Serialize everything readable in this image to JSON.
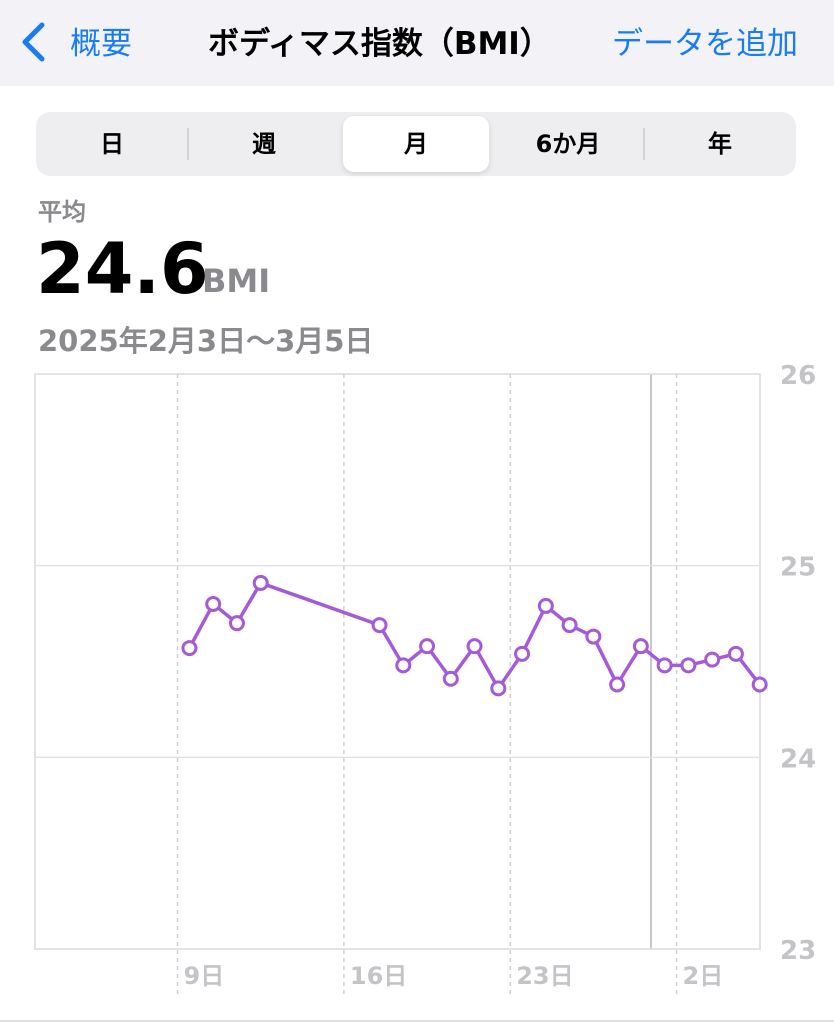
{
  "nav": {
    "back": "概要",
    "title": "ボディマス指数（BMI）",
    "action": "データを追加"
  },
  "segments": {
    "items": [
      "日",
      "週",
      "月",
      "6か月",
      "年"
    ],
    "selected": 2
  },
  "summary": {
    "label": "平均",
    "value": "24.6",
    "unit": "BMI",
    "range": "2025年2月3日〜3月5日"
  },
  "chart_data": {
    "type": "line",
    "color": "#a55bd6",
    "grid": true,
    "categories": [
      null,
      null,
      null,
      null,
      null,
      null,
      "9日",
      null,
      null,
      null,
      null,
      null,
      null,
      "16日",
      null,
      null,
      null,
      null,
      null,
      null,
      "23日",
      null,
      null,
      null,
      null,
      null,
      null,
      "2日",
      null,
      null,
      null
    ],
    "values": [
      null,
      null,
      null,
      null,
      null,
      null,
      24.57,
      24.8,
      24.7,
      24.91,
      null,
      null,
      null,
      null,
      24.69,
      24.48,
      24.58,
      24.41,
      24.58,
      24.36,
      24.54,
      24.79,
      24.69,
      24.63,
      24.38,
      24.58,
      24.48,
      24.48,
      24.51,
      24.54,
      24.38
    ],
    "ylim": [
      23,
      26
    ],
    "yticks": [
      23,
      24,
      25,
      26
    ]
  }
}
